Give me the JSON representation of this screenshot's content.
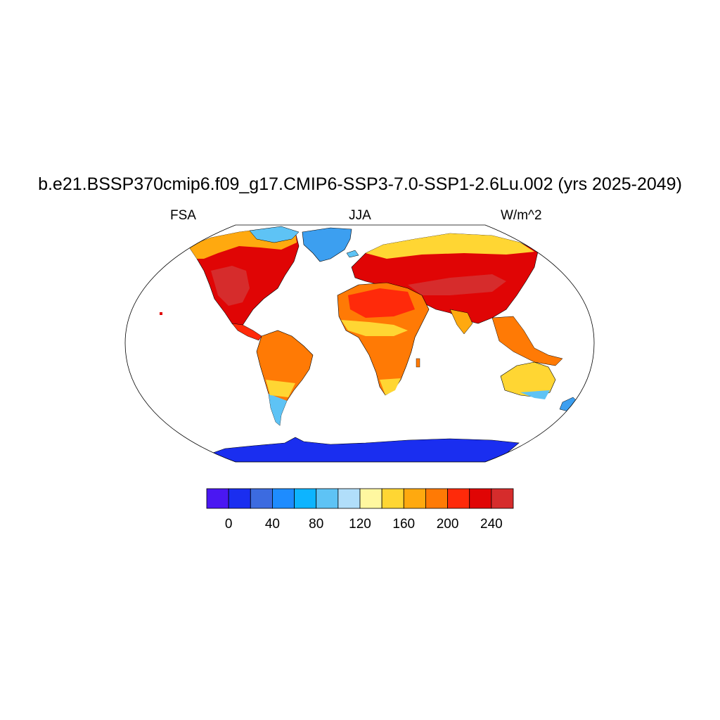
{
  "title": "b.e21.BSSP370cmip6.f09_g17.CMIP6-SSP3-7.0-SSP1-2.6Lu.002 (yrs 2025-2049)",
  "variable": "FSA",
  "season": "JJA",
  "units": "W/m^2",
  "colorbar": {
    "colors": [
      "#4a17f2",
      "#1a2ef0",
      "#3c6be0",
      "#1e8cff",
      "#0db4ff",
      "#5ec3f5",
      "#b1defa",
      "#fff7a0",
      "#ffd633",
      "#ffa90f",
      "#ff7a05",
      "#ff2a0a",
      "#e00505",
      "#d62c2c"
    ],
    "tick_labels": [
      "0",
      "40",
      "80",
      "120",
      "160",
      "200",
      "240"
    ]
  }
}
